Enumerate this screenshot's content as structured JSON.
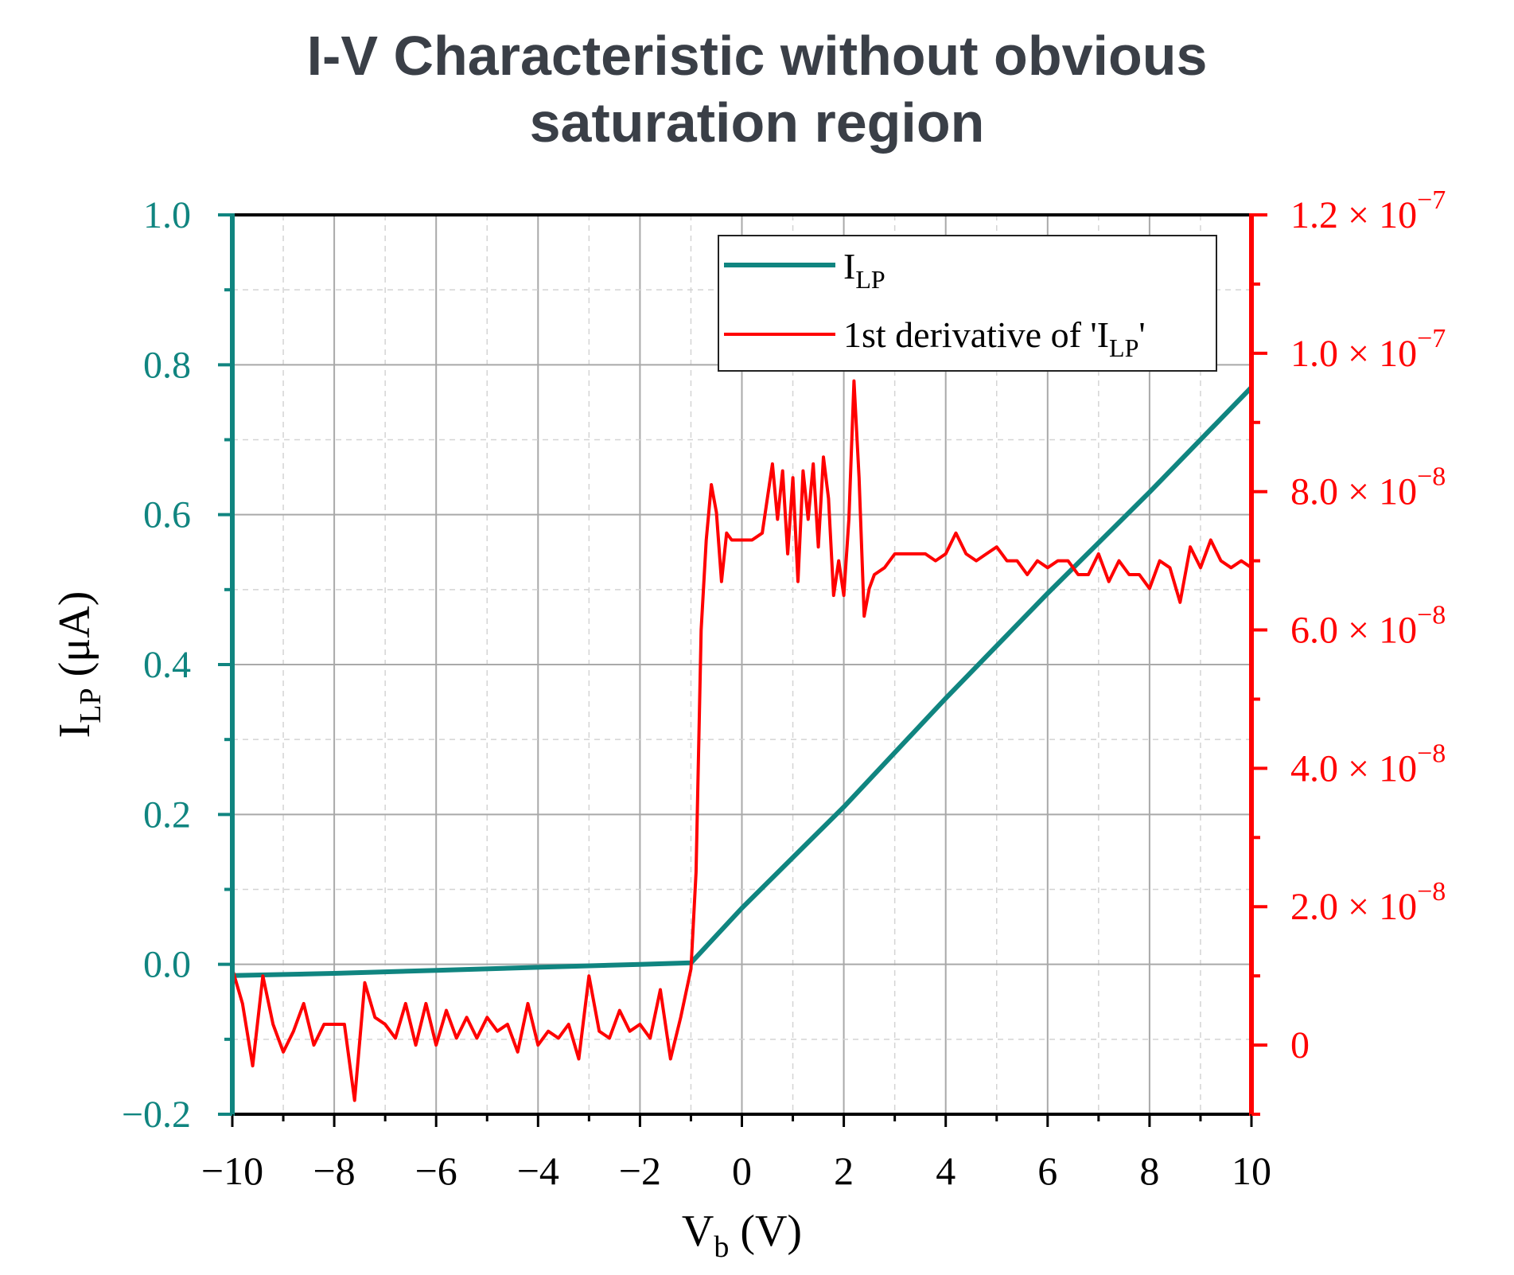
{
  "colors": {
    "background": "#ffffff",
    "title": "#3a3f47",
    "left_axis": "#108580",
    "right_axis": "#ff0000",
    "frame": "#000000",
    "grid_major": "#a9a9a9",
    "grid_minor": "#d4d4d4"
  },
  "chart_data": {
    "type": "line",
    "title_lines": [
      "I-V Characteristic without obvious",
      "saturation region"
    ],
    "xlabel": {
      "main": "V",
      "sub": "b",
      "unit": " (V)"
    },
    "ylabel": {
      "main": "I",
      "sub": "LP",
      "unit": " (μA)"
    },
    "xlim": [
      -10,
      10
    ],
    "ylim": [
      -0.2,
      1.0
    ],
    "y2lim": [
      -1e-08,
      1.2e-07
    ],
    "grid": true,
    "legend_position": "top-right",
    "x_ticks": [
      {
        "v": -10,
        "label": "−10"
      },
      {
        "v": -8,
        "label": "−8"
      },
      {
        "v": -6,
        "label": "−6"
      },
      {
        "v": -4,
        "label": "−4"
      },
      {
        "v": -2,
        "label": "−2"
      },
      {
        "v": 0,
        "label": "0"
      },
      {
        "v": 2,
        "label": "2"
      },
      {
        "v": 4,
        "label": "4"
      },
      {
        "v": 6,
        "label": "6"
      },
      {
        "v": 8,
        "label": "8"
      },
      {
        "v": 10,
        "label": "10"
      }
    ],
    "y_ticks": [
      {
        "v": -0.2,
        "label": "−0.2"
      },
      {
        "v": 0.0,
        "label": "0.0"
      },
      {
        "v": 0.2,
        "label": "0.2"
      },
      {
        "v": 0.4,
        "label": "0.4"
      },
      {
        "v": 0.6,
        "label": "0.6"
      },
      {
        "v": 0.8,
        "label": "0.8"
      },
      {
        "v": 1.0,
        "label": "1.0"
      }
    ],
    "y2_ticks": [
      {
        "v": 0,
        "mant": "0",
        "exp": ""
      },
      {
        "v": 2e-08,
        "mant": "2.0 × 10",
        "exp": "−8"
      },
      {
        "v": 4e-08,
        "mant": "4.0 × 10",
        "exp": "−8"
      },
      {
        "v": 6e-08,
        "mant": "6.0 × 10",
        "exp": "−8"
      },
      {
        "v": 8e-08,
        "mant": "8.0 × 10",
        "exp": "−8"
      },
      {
        "v": 1e-07,
        "mant": "1.0 × 10",
        "exp": "−7"
      },
      {
        "v": 1.2e-07,
        "mant": "1.2 × 10",
        "exp": "−7"
      }
    ],
    "series": [
      {
        "name": "I_LP",
        "legend_main": "I",
        "legend_sub": "LP",
        "legend_tail": "",
        "axis": "left",
        "color": "#108580",
        "x": [
          -10,
          -8,
          -6,
          -4,
          -2,
          -1,
          0,
          2,
          4,
          6,
          8,
          10
        ],
        "y": [
          -0.015,
          -0.012,
          -0.008,
          -0.004,
          0.0,
          0.002,
          0.075,
          0.21,
          0.355,
          0.495,
          0.63,
          0.77
        ]
      },
      {
        "name": "1st derivative of 'I_LP'",
        "legend_main": "1st derivative of 'I",
        "legend_sub": "LP",
        "legend_tail": "'",
        "axis": "right",
        "color": "#ff0000",
        "x": [
          -10,
          -9.8,
          -9.6,
          -9.4,
          -9.2,
          -9.0,
          -8.8,
          -8.6,
          -8.4,
          -8.2,
          -8.0,
          -7.8,
          -7.6,
          -7.4,
          -7.2,
          -7.0,
          -6.8,
          -6.6,
          -6.4,
          -6.2,
          -6.0,
          -5.8,
          -5.6,
          -5.4,
          -5.2,
          -5.0,
          -4.8,
          -4.6,
          -4.4,
          -4.2,
          -4.0,
          -3.8,
          -3.6,
          -3.4,
          -3.2,
          -3.0,
          -2.8,
          -2.6,
          -2.4,
          -2.2,
          -2.0,
          -1.8,
          -1.6,
          -1.4,
          -1.2,
          -1.0,
          -0.9,
          -0.8,
          -0.7,
          -0.6,
          -0.5,
          -0.4,
          -0.3,
          -0.2,
          -0.1,
          0.0,
          0.2,
          0.4,
          0.6,
          0.7,
          0.8,
          0.9,
          1.0,
          1.1,
          1.2,
          1.3,
          1.4,
          1.5,
          1.6,
          1.7,
          1.8,
          1.9,
          2.0,
          2.1,
          2.2,
          2.3,
          2.4,
          2.5,
          2.6,
          2.8,
          3.0,
          3.2,
          3.4,
          3.6,
          3.8,
          4.0,
          4.2,
          4.4,
          4.6,
          4.8,
          5.0,
          5.2,
          5.4,
          5.6,
          5.8,
          6.0,
          6.2,
          6.4,
          6.6,
          6.8,
          7.0,
          7.2,
          7.4,
          7.6,
          7.8,
          8.0,
          8.2,
          8.4,
          8.6,
          8.8,
          9.0,
          9.2,
          9.4,
          9.6,
          9.8,
          10.0
        ],
        "y": [
          1.1e-08,
          6e-09,
          -3e-09,
          1e-08,
          3e-09,
          -1e-09,
          2e-09,
          6e-09,
          0,
          3e-09,
          3e-09,
          3e-09,
          -8e-09,
          9e-09,
          4e-09,
          3e-09,
          1e-09,
          6e-09,
          0,
          6e-09,
          0,
          5e-09,
          1e-09,
          4e-09,
          1e-09,
          4e-09,
          2e-09,
          3e-09,
          -1e-09,
          6e-09,
          0,
          2e-09,
          1e-09,
          3e-09,
          -2e-09,
          1e-08,
          2e-09,
          1e-09,
          5e-09,
          2e-09,
          3e-09,
          1e-09,
          8e-09,
          -2e-09,
          4e-09,
          1.1e-08,
          2.5e-08,
          6e-08,
          7.3e-08,
          8.1e-08,
          7.7e-08,
          6.7e-08,
          7.4e-08,
          7.3e-08,
          7.3e-08,
          7.3e-08,
          7.3e-08,
          7.4e-08,
          8.4e-08,
          7.6e-08,
          8.3e-08,
          7.1e-08,
          8.2e-08,
          6.7e-08,
          8.3e-08,
          7.6e-08,
          8.4e-08,
          7.2e-08,
          8.5e-08,
          7.9e-08,
          6.5e-08,
          7e-08,
          6.5e-08,
          7.6e-08,
          9.6e-08,
          8.2e-08,
          6.2e-08,
          6.6e-08,
          6.8e-08,
          6.9e-08,
          7.1e-08,
          7.1e-08,
          7.1e-08,
          7.1e-08,
          7e-08,
          7.1e-08,
          7.4e-08,
          7.1e-08,
          7e-08,
          7.1e-08,
          7.2e-08,
          7e-08,
          7e-08,
          6.8e-08,
          7e-08,
          6.9e-08,
          7e-08,
          7e-08,
          6.8e-08,
          6.8e-08,
          7.1e-08,
          6.7e-08,
          7e-08,
          6.8e-08,
          6.8e-08,
          6.6e-08,
          7e-08,
          6.9e-08,
          6.4e-08,
          7.2e-08,
          6.9e-08,
          7.3e-08,
          7e-08,
          6.9e-08,
          7e-08,
          6.9e-08
        ]
      }
    ]
  }
}
